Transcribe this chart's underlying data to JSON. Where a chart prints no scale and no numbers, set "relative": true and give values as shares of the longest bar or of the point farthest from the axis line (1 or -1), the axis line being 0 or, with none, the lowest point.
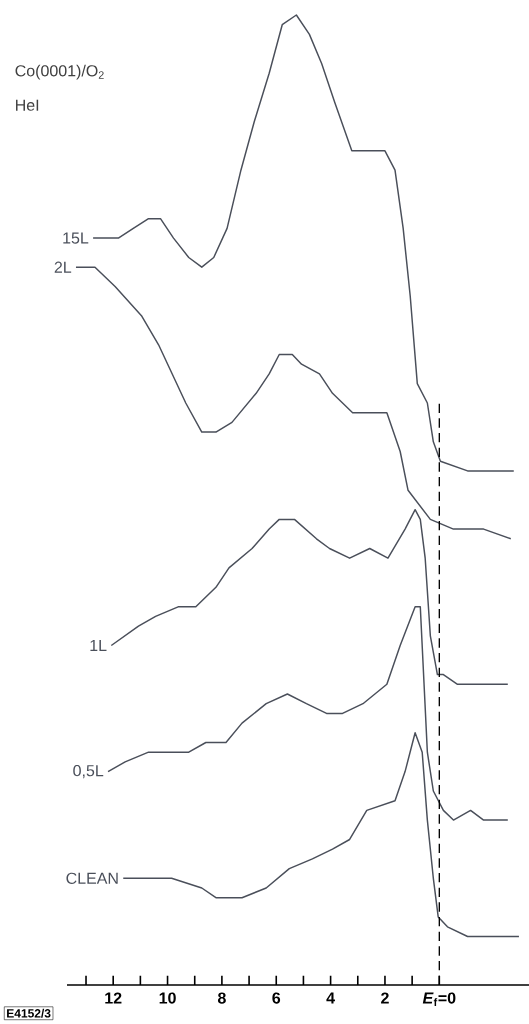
{
  "chart_data": {
    "type": "line",
    "title": "Co(0001)/O$_{2}$",
    "subtitle": "HeI",
    "relative": true,
    "xlim": [
      13.7,
      -3.3
    ],
    "xticks": [
      {
        "value": 13,
        "label": null
      },
      12,
      {
        "value": 11,
        "label": null
      },
      10,
      {
        "value": 9,
        "label": null
      },
      8,
      {
        "value": 7,
        "label": null
      },
      6,
      {
        "value": 5,
        "label": null
      },
      4,
      {
        "value": 3,
        "label": null
      },
      2,
      {
        "value": 1,
        "label": null
      },
      {
        "value": 0,
        "label": "*E*$_{f}$=0"
      }
    ],
    "ref_lines": [
      {
        "axis": "x",
        "value": 0,
        "line_style": "dashed"
      }
    ],
    "annotations": [
      "E4152/3"
    ],
    "series": [
      {
        "name": "15L",
        "color": "#4a4f5a",
        "x": [
          12.74,
          12.3,
          11.81,
          11.26,
          10.7,
          10.26,
          9.78,
          9.22,
          8.74,
          8.3,
          7.81,
          7.3,
          6.81,
          6.26,
          5.78,
          5.26,
          4.78,
          4.33,
          3.85,
          3.22,
          2.56,
          2.0,
          1.63,
          1.33,
          1.07,
          0.81,
          0.44,
          0.22,
          -0.04,
          -1.04,
          -1.52,
          -2.26,
          -2.74
        ],
        "values": [
          0.77,
          0.77,
          0.77,
          0.78,
          0.79,
          0.79,
          0.77,
          0.75,
          0.74,
          0.75,
          0.78,
          0.84,
          0.89,
          0.94,
          0.99,
          1.0,
          0.98,
          0.95,
          0.91,
          0.86,
          0.86,
          0.86,
          0.84,
          0.78,
          0.71,
          0.62,
          0.6,
          0.56,
          0.54,
          0.53,
          0.53,
          0.53,
          0.53
        ]
      },
      {
        "name": "2L",
        "color": "#4a4f5a",
        "x": [
          13.37,
          12.67,
          11.93,
          10.96,
          10.33,
          9.33,
          8.74,
          8.22,
          7.63,
          6.74,
          6.26,
          5.89,
          5.41,
          5.07,
          4.41,
          3.93,
          3.19,
          2.67,
          1.93,
          1.44,
          1.15,
          0.33,
          -0.52,
          -1.63,
          -2.63
        ],
        "values": [
          0.74,
          0.74,
          0.72,
          0.69,
          0.66,
          0.6,
          0.57,
          0.57,
          0.58,
          0.61,
          0.63,
          0.65,
          0.65,
          0.64,
          0.63,
          0.61,
          0.59,
          0.59,
          0.59,
          0.55,
          0.51,
          0.48,
          0.47,
          0.47,
          0.46
        ]
      },
      {
        "name": "1L",
        "color": "#4a4f5a",
        "x": [
          12.07,
          11.07,
          10.44,
          9.59,
          8.96,
          8.22,
          7.74,
          6.89,
          6.26,
          5.89,
          5.33,
          4.52,
          4.04,
          3.3,
          2.56,
          1.89,
          1.26,
          0.89,
          0.7,
          0.52,
          0.33,
          0.07,
          -0.15,
          -0.67,
          -1.15,
          -1.89,
          -2.52
        ],
        "values": [
          0.35,
          0.37,
          0.38,
          0.39,
          0.39,
          0.41,
          0.43,
          0.45,
          0.47,
          0.48,
          0.48,
          0.46,
          0.45,
          0.44,
          0.45,
          0.44,
          0.47,
          0.49,
          0.48,
          0.44,
          0.36,
          0.32,
          0.32,
          0.31,
          0.31,
          0.31,
          0.31
        ]
      },
      {
        "name": "0,5L",
        "color": "#4a4f5a",
        "x": [
          12.19,
          11.56,
          10.7,
          9.85,
          9.22,
          8.59,
          7.85,
          7.26,
          6.37,
          5.59,
          4.89,
          4.15,
          3.56,
          2.81,
          1.93,
          1.44,
          0.89,
          0.7,
          0.44,
          0.22,
          -0.15,
          -0.52,
          -1.15,
          -1.63,
          -2.52
        ],
        "values": [
          0.22,
          0.23,
          0.24,
          0.24,
          0.24,
          0.25,
          0.25,
          0.27,
          0.29,
          0.3,
          0.29,
          0.28,
          0.28,
          0.29,
          0.31,
          0.35,
          0.39,
          0.39,
          0.24,
          0.2,
          0.18,
          0.17,
          0.18,
          0.17,
          0.17
        ]
      },
      {
        "name": "CLEAN",
        "color": "#4a4f5a",
        "x": [
          11.63,
          10.7,
          9.85,
          8.74,
          8.22,
          7.26,
          6.37,
          5.52,
          4.67,
          3.93,
          3.3,
          2.67,
          1.63,
          1.26,
          0.89,
          0.63,
          0.44,
          0.22,
          0.04,
          -0.3,
          -1.04,
          -1.63,
          -2.26,
          -2.93
        ],
        "values": [
          0.11,
          0.11,
          0.11,
          0.1,
          0.09,
          0.09,
          0.1,
          0.12,
          0.13,
          0.14,
          0.15,
          0.18,
          0.19,
          0.22,
          0.26,
          0.24,
          0.17,
          0.11,
          0.07,
          0.06,
          0.05,
          0.05,
          0.05,
          0.05
        ]
      }
    ]
  }
}
